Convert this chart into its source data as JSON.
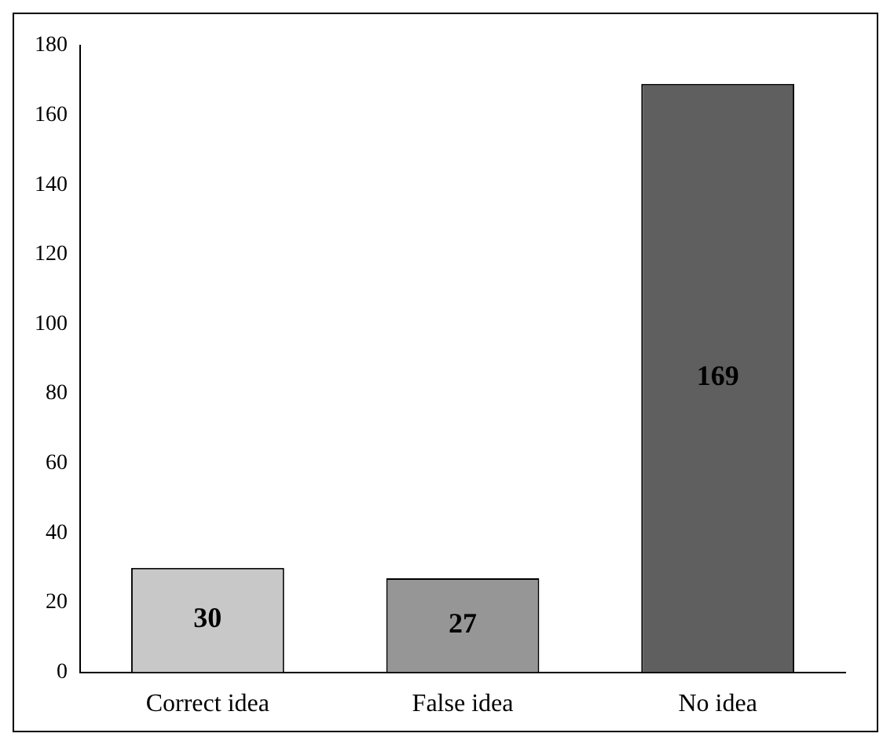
{
  "chart_data": {
    "type": "bar",
    "categories": [
      "Correct idea",
      "False idea",
      "No idea"
    ],
    "values": [
      30,
      27,
      169
    ],
    "colors": [
      "#c8c8c8",
      "#969696",
      "#5f5f5f"
    ],
    "ylim": [
      0,
      180
    ],
    "yticks": [
      0,
      20,
      40,
      60,
      80,
      100,
      120,
      140,
      160,
      180
    ],
    "grid": false,
    "legend": false,
    "data_labels": true
  }
}
